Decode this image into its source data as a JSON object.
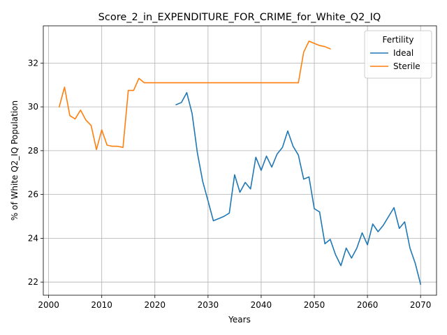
{
  "chart_data": {
    "type": "line",
    "title": "Score_2_in_EXPENDITURE_FOR_CRIME_for_White_Q2_IQ",
    "xlabel": "Years",
    "ylabel": "% of White Q2_IQ Population",
    "xlim": [
      1999,
      2073
    ],
    "ylim": [
      21.4,
      33.7
    ],
    "xticks": [
      2000,
      2010,
      2020,
      2030,
      2040,
      2050,
      2060,
      2070
    ],
    "yticks": [
      22,
      24,
      26,
      28,
      30,
      32
    ],
    "grid": true,
    "legend": {
      "title": "Fertility",
      "placement": "top-right"
    },
    "series": [
      {
        "name": "Ideal",
        "color": "#1f77b4",
        "x": [
          2024,
          2025,
          2026,
          2027,
          2028,
          2029,
          2030,
          2031,
          2032,
          2033,
          2034,
          2035,
          2036,
          2037,
          2038,
          2039,
          2040,
          2041,
          2042,
          2043,
          2044,
          2045,
          2046,
          2047,
          2048,
          2049,
          2050,
          2051,
          2052,
          2053,
          2054,
          2055,
          2056,
          2057,
          2058,
          2059,
          2060,
          2061,
          2062,
          2063,
          2064,
          2065,
          2066,
          2067,
          2068,
          2069,
          2070
        ],
        "values": [
          30.1,
          30.2,
          30.65,
          29.7,
          27.9,
          26.6,
          25.7,
          24.8,
          24.9,
          25.0,
          25.15,
          26.9,
          26.1,
          26.55,
          26.25,
          27.7,
          27.1,
          27.75,
          27.25,
          27.85,
          28.15,
          28.9,
          28.2,
          27.8,
          26.7,
          26.8,
          25.35,
          25.2,
          23.75,
          23.95,
          23.25,
          22.75,
          23.55,
          23.1,
          23.55,
          24.25,
          23.7,
          24.65,
          24.3,
          24.6,
          25.0,
          25.4,
          24.45,
          24.75,
          23.55,
          22.85,
          21.9
        ]
      },
      {
        "name": "Sterile",
        "color": "#ff7f0e",
        "x": [
          2002,
          2003,
          2004,
          2005,
          2006,
          2007,
          2008,
          2009,
          2010,
          2011,
          2012,
          2013,
          2014,
          2015,
          2016,
          2017,
          2018,
          2019,
          2020,
          2025,
          2030,
          2035,
          2040,
          2045,
          2046,
          2047,
          2048,
          2049,
          2050,
          2051,
          2052,
          2053
        ],
        "values": [
          30.0,
          30.9,
          29.6,
          29.45,
          29.85,
          29.4,
          29.15,
          28.05,
          28.95,
          28.25,
          28.2,
          28.2,
          28.15,
          30.75,
          30.75,
          31.3,
          31.1,
          31.1,
          31.1,
          31.1,
          31.1,
          31.1,
          31.1,
          31.1,
          31.1,
          31.1,
          32.5,
          33.0,
          32.9,
          32.8,
          32.75,
          32.65
        ]
      }
    ]
  }
}
